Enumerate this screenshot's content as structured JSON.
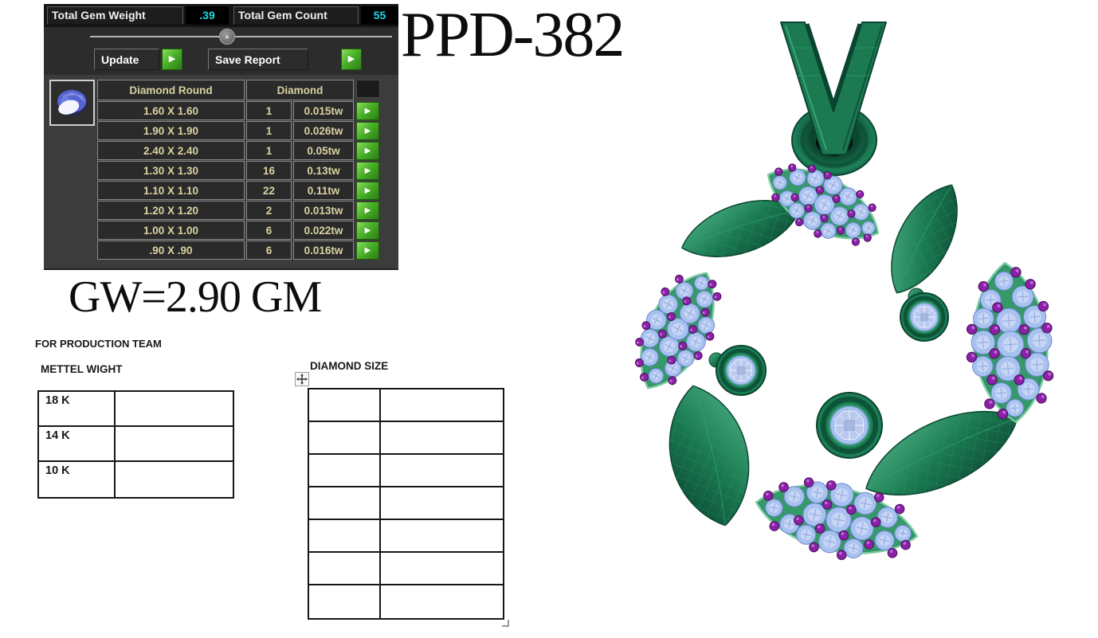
{
  "title": "PPD-382",
  "gross_weight": "GW=2.90 GM",
  "gem_report_panel": {
    "totals": {
      "weight_label": "Total Gem Weight",
      "weight_value": ".39",
      "count_label": "Total Gem Count",
      "count_value": "55"
    },
    "buttons": {
      "update": "Update",
      "save_report": "Save Report",
      "row_arrow": "▶"
    },
    "slider_arrow": "▲",
    "gem_table": {
      "columns": [
        "Diamond Round",
        "Diamond"
      ],
      "rows": [
        {
          "size": "1.60 X 1.60",
          "count": "1",
          "weight": "0.015tw"
        },
        {
          "size": "1.90 X 1.90",
          "count": "1",
          "weight": "0.026tw"
        },
        {
          "size": "2.40 X 2.40",
          "count": "1",
          "weight": "0.05tw"
        },
        {
          "size": "1.30 X 1.30",
          "count": "16",
          "weight": "0.13tw"
        },
        {
          "size": "1.10 X 1.10",
          "count": "22",
          "weight": "0.11tw"
        },
        {
          "size": "1.20 X 1.20",
          "count": "2",
          "weight": "0.013tw"
        },
        {
          "size": "1.00 X 1.00",
          "count": "6",
          "weight": "0.022tw"
        },
        {
          "size": ".90 X .90",
          "count": "6",
          "weight": "0.016tw"
        }
      ]
    },
    "colors": {
      "value_text": "#22d6e6",
      "table_text": "#d9d2a2",
      "button_green": "#49b228"
    }
  },
  "production": {
    "heading": "FOR PRODUCTION TEAM",
    "metal_weight_table": {
      "heading": "METTEL WIGHT",
      "row_labels": [
        "18 K",
        "14 K",
        "10 K"
      ]
    },
    "diamond_size_table": {
      "heading": "DIAMOND SIZE",
      "empty_rows": 7,
      "columns": 2
    }
  },
  "pendant": {
    "kind": "3D CAD render: leaf-wreath pendant with V-shaped bail",
    "plain_leaves": 4,
    "pave_leaves": 4,
    "bezel_gems": 3,
    "colors": {
      "metal": "#1b7a52",
      "metal_light": "#4fb286",
      "metal_dark": "#0a4530",
      "pave_bed": "#2d8f60",
      "pave_rim": "#7acaa2",
      "gem_blue": "#a8c2f0",
      "gem_blue_light": "#cbd8f6",
      "gem_blue_edge": "#6d88cc",
      "gem_purple": "#8a21a6",
      "gem_purple_dark": "#4c0e60"
    }
  }
}
